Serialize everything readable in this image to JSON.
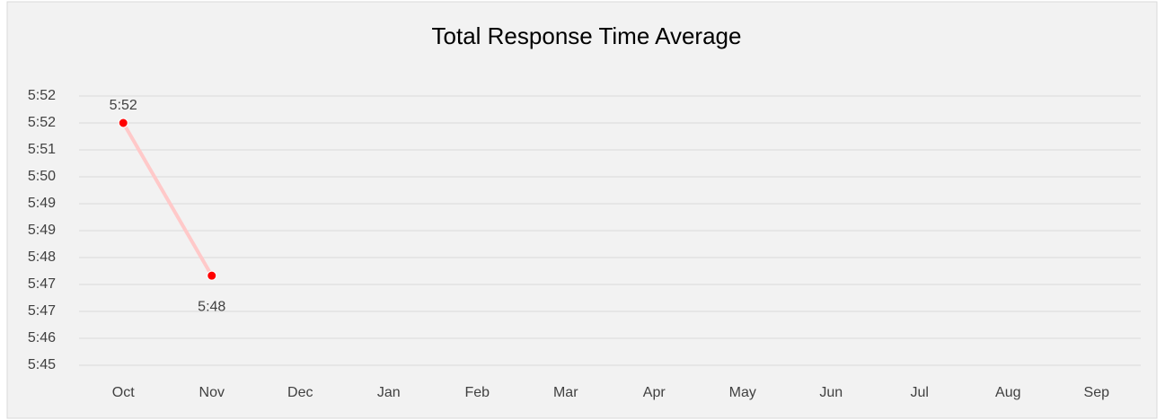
{
  "chart_data": {
    "type": "line",
    "title": "Total Response Time Average",
    "categories": [
      "Oct",
      "Nov",
      "Dec",
      "Jan",
      "Feb",
      "Mar",
      "Apr",
      "May",
      "Jun",
      "Jul",
      "Aug",
      "Sep"
    ],
    "series": [
      {
        "color": "#ff0000",
        "line_color": "#ffc9c9",
        "values": [
          351.5,
          347.53,
          null,
          null,
          null,
          null,
          null,
          null,
          null,
          null,
          null,
          null
        ],
        "value_labels": [
          "5:52",
          "5:48",
          null,
          null,
          null,
          null,
          null,
          null,
          null,
          null,
          null,
          null
        ]
      }
    ],
    "ylim": [
      345.2,
      352.2
    ],
    "yticks": [
      {
        "value": 345.2,
        "label": "5:45"
      },
      {
        "value": 345.9,
        "label": "5:46"
      },
      {
        "value": 346.6,
        "label": "5:47"
      },
      {
        "value": 347.3,
        "label": "5:47"
      },
      {
        "value": 348.0,
        "label": "5:48"
      },
      {
        "value": 348.7,
        "label": "5:49"
      },
      {
        "value": 349.4,
        "label": "5:49"
      },
      {
        "value": 350.1,
        "label": "5:50"
      },
      {
        "value": 350.8,
        "label": "5:51"
      },
      {
        "value": 351.5,
        "label": "5:52"
      },
      {
        "value": 352.2,
        "label": "5:52"
      }
    ],
    "grid": true
  }
}
